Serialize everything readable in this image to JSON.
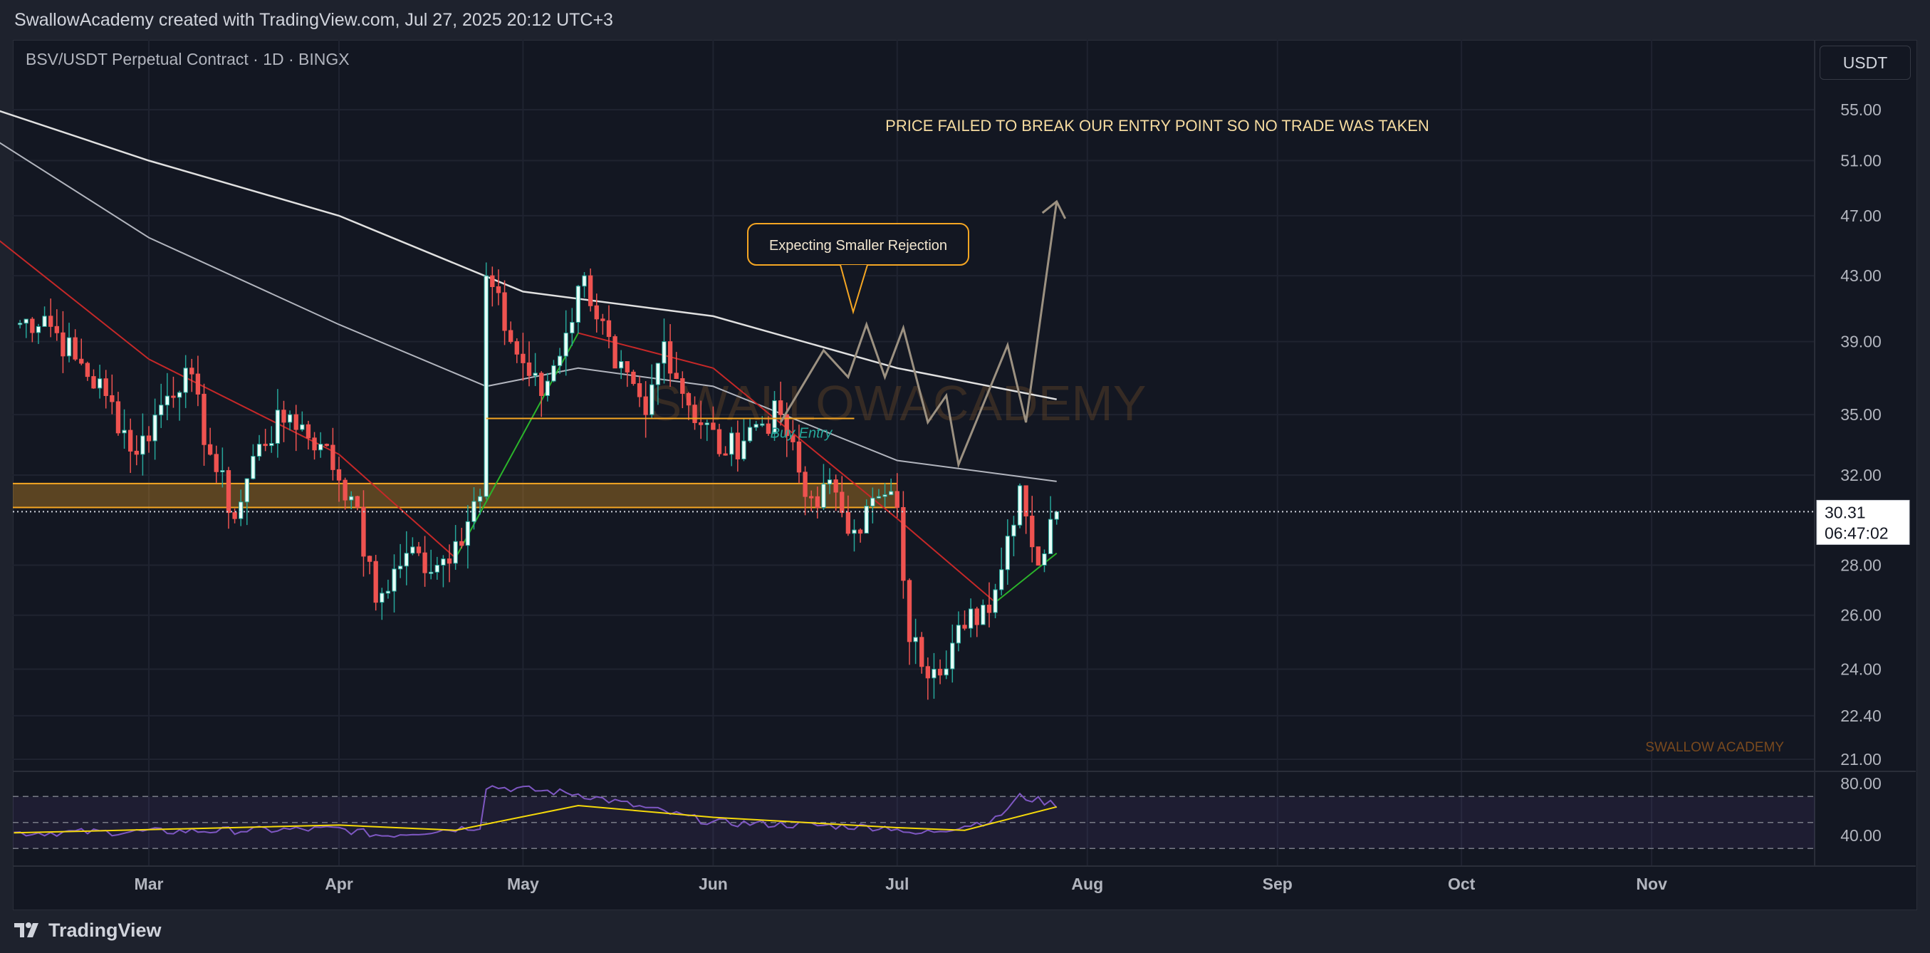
{
  "header": {
    "credit": "SwallowAcademy created with TradingView.com, Jul 27, 2025 20:12 UTC+3"
  },
  "symbol": {
    "title": "BSV/USDT Perpetual Contract · 1D · BINGX",
    "currency": "USDT"
  },
  "footer": {
    "brand": "TradingView"
  },
  "colors": {
    "background": "#131722",
    "up": "#26a69a",
    "down": "#ef5350",
    "annotation": "#f5a623",
    "ma_long": "#e0e0e0",
    "ma_mid": "#b2b5be",
    "ma_fast_down": "#c62828",
    "ma_fast_up": "#2bb52b",
    "rsi": "#7e57c2",
    "rsi_ma": "#f5d90a"
  },
  "chart_data": {
    "type": "candlestick",
    "title": "BSV/USDT Perpetual Contract · 1D · BINGX",
    "x_ticks": [
      "Mar",
      "Apr",
      "May",
      "Jun",
      "Jul",
      "Aug",
      "Sep",
      "Oct",
      "Nov"
    ],
    "y_ticks": [
      "55.00",
      "51.00",
      "47.00",
      "43.00",
      "39.00",
      "35.00",
      "32.00",
      "28.00",
      "26.00",
      "24.00",
      "22.40",
      "21.00"
    ],
    "y_scale": "log",
    "last_price": "30.31",
    "countdown": "06:47:02",
    "ohlc_keyframes": [
      {
        "x": "Feb 7",
        "close": 40.0
      },
      {
        "x": "Feb 12",
        "close": 40.5
      },
      {
        "x": "Feb 17",
        "close": 38.0
      },
      {
        "x": "Feb 22",
        "close": 36.0
      },
      {
        "x": "Feb 27",
        "close": 33.0
      },
      {
        "x": "Mar 3",
        "close": 35.5
      },
      {
        "x": "Mar 7",
        "close": 37.5
      },
      {
        "x": "Mar 11",
        "close": 33.0
      },
      {
        "x": "Mar 15",
        "close": 30.0
      },
      {
        "x": "Mar 19",
        "close": 33.5
      },
      {
        "x": "Mar 24",
        "close": 35.0
      },
      {
        "x": "Mar 29",
        "close": 33.5
      },
      {
        "x": "Apr 3",
        "close": 31.0
      },
      {
        "x": "Apr 7",
        "close": 26.5
      },
      {
        "x": "Apr 12",
        "close": 28.5
      },
      {
        "x": "Apr 17",
        "close": 28.0
      },
      {
        "x": "Apr 20",
        "close": 29.0
      },
      {
        "x": "Apr 24",
        "close": 31.0
      },
      {
        "x": "Apr 25",
        "close": 43.0
      },
      {
        "x": "Apr 29",
        "close": 39.0
      },
      {
        "x": "May 4",
        "close": 36.0
      },
      {
        "x": "May 8",
        "close": 39.5
      },
      {
        "x": "May 11",
        "close": 43.0
      },
      {
        "x": "May 16",
        "close": 37.5
      },
      {
        "x": "May 21",
        "close": 35.0
      },
      {
        "x": "May 24",
        "close": 39.0
      },
      {
        "x": "May 28",
        "close": 35.5
      },
      {
        "x": "Jun 3",
        "close": 33.0
      },
      {
        "x": "Jun 8",
        "close": 34.5
      },
      {
        "x": "Jun 12",
        "close": 35.0
      },
      {
        "x": "Jun 16",
        "close": 31.0
      },
      {
        "x": "Jun 21",
        "close": 31.2
      },
      {
        "x": "Jun 24",
        "close": 29.5
      },
      {
        "x": "Jun 28",
        "close": 31.0
      },
      {
        "x": "Jul 1",
        "close": 30.5
      },
      {
        "x": "Jul 3",
        "close": 25.0
      },
      {
        "x": "Jul 7",
        "close": 24.0
      },
      {
        "x": "Jul 12",
        "close": 25.5
      },
      {
        "x": "Jul 17",
        "close": 27.0
      },
      {
        "x": "Jul 21",
        "close": 31.5
      },
      {
        "x": "Jul 24",
        "close": 28.0
      },
      {
        "x": "Jul 27",
        "close": 30.31
      }
    ],
    "moving_averages": [
      {
        "name": "",
        "points": [
          [
            "Feb 1",
            55.5
          ],
          [
            "Mar 1",
            51.0
          ],
          [
            "Apr 1",
            47.0
          ],
          [
            "May 1",
            42.0
          ],
          [
            "Jun 1",
            40.5
          ],
          [
            "Jul 1",
            37.5
          ],
          [
            "Jul 27",
            35.8
          ]
        ]
      },
      {
        "name": "",
        "points": [
          [
            "Feb 1",
            53.5
          ],
          [
            "Mar 1",
            45.5
          ],
          [
            "Apr 1",
            40.0
          ],
          [
            "Apr 25",
            36.5
          ],
          [
            "May 10",
            37.5
          ],
          [
            "Jun 1",
            36.5
          ],
          [
            "Jul 1",
            32.7
          ],
          [
            "Jul 27",
            31.7
          ]
        ]
      },
      {
        "name": "",
        "points": [
          [
            "Feb 1",
            46.5
          ],
          [
            "Mar 1",
            38.0
          ],
          [
            "Apr 1",
            33.0
          ],
          [
            "Apr 20",
            28.3
          ],
          [
            "May 10",
            39.5
          ],
          [
            "Jun 1",
            37.5
          ],
          [
            "Jul 1",
            30.0
          ],
          [
            "Jul 17",
            26.5
          ],
          [
            "Jul 27",
            28.5
          ]
        ]
      }
    ],
    "support_zone": {
      "low": 30.5,
      "high": 31.6
    },
    "buy_entry_level": 34.8,
    "annotations": {
      "headline": "PRICE FAILED TO BREAK OUR ENTRY POINT SO NO TRADE WAS TAKEN",
      "callout": "Expecting Smaller Rejection",
      "buy_entry": "Buy Entry",
      "watermark": "SWALLOWACADEMY",
      "signature": "SWALLOW ACADEMY"
    },
    "rsi": {
      "y_ticks": [
        "80.00",
        "40.00"
      ],
      "keyframes": [
        [
          "Feb 7",
          42
        ],
        [
          "Mar 1",
          43
        ],
        [
          "Apr 1",
          45
        ],
        [
          "Apr 8",
          40
        ],
        [
          "Apr 24",
          47
        ],
        [
          "Apr 25",
          78
        ],
        [
          "May 10",
          72
        ],
        [
          "Jun 1",
          50
        ],
        [
          "Jul 1",
          46
        ],
        [
          "Jul 3",
          40
        ],
        [
          "Jul 17",
          52
        ],
        [
          "Jul 21",
          70
        ],
        [
          "Jul 27",
          64
        ]
      ],
      "ma_keyframes": [
        [
          "Feb 7",
          42
        ],
        [
          "Apr 1",
          48
        ],
        [
          "Apr 20",
          44
        ],
        [
          "May 10",
          63
        ],
        [
          "Jun 1",
          54
        ],
        [
          "Jul 1",
          46
        ],
        [
          "Jul 12",
          44
        ],
        [
          "Jul 27",
          62
        ]
      ]
    }
  }
}
